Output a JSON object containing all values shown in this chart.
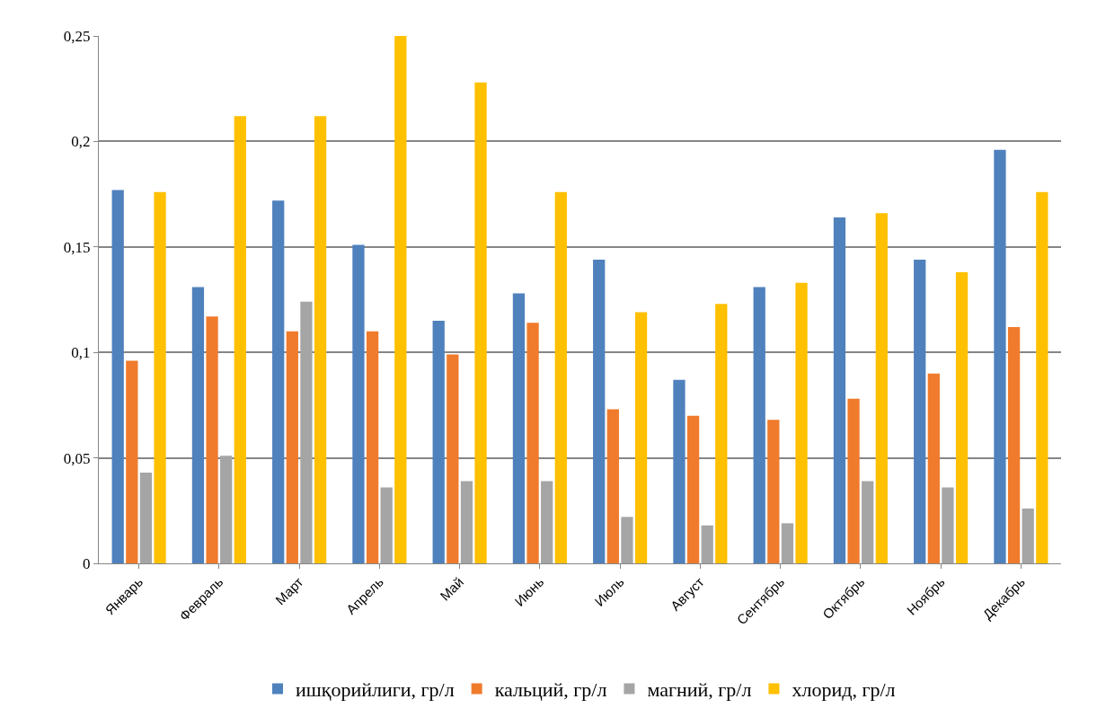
{
  "chart_data": {
    "type": "bar",
    "categories": [
      "Январь",
      "Февраль",
      "Март",
      "Апрель",
      "Май",
      "Июнь",
      "Июль",
      "Август",
      "Сентябрь",
      "Октябрь",
      "Ноябрь",
      "Декабрь"
    ],
    "series": [
      {
        "name": "ишқорийлиги, гр/л",
        "color": "#4f81bd",
        "values": [
          0.177,
          0.131,
          0.172,
          0.151,
          0.115,
          0.128,
          0.144,
          0.087,
          0.131,
          0.164,
          0.144,
          0.196
        ]
      },
      {
        "name": "кальций, гр/л",
        "color": "#f07b2c",
        "values": [
          0.096,
          0.117,
          0.11,
          0.11,
          0.099,
          0.114,
          0.073,
          0.07,
          0.068,
          0.078,
          0.09,
          0.112
        ]
      },
      {
        "name": "магний, гр/л",
        "color": "#a5a5a5",
        "values": [
          0.043,
          0.051,
          0.124,
          0.036,
          0.039,
          0.039,
          0.022,
          0.018,
          0.019,
          0.039,
          0.036,
          0.026
        ]
      },
      {
        "name": "хлорид, гр/л",
        "color": "#ffc000",
        "values": [
          0.176,
          0.212,
          0.212,
          0.25,
          0.228,
          0.176,
          0.119,
          0.123,
          0.133,
          0.166,
          0.138,
          0.176
        ]
      }
    ],
    "ylim": [
      0,
      0.25
    ],
    "yticks": [
      {
        "value": 0,
        "label": "0"
      },
      {
        "value": 0.05,
        "label": "0,05"
      },
      {
        "value": 0.1,
        "label": "0,1"
      },
      {
        "value": 0.15,
        "label": "0,15"
      },
      {
        "value": 0.2,
        "label": "0,2"
      },
      {
        "value": 0.25,
        "label": "0,25"
      }
    ],
    "grid": "y",
    "legend": "bottom"
  }
}
